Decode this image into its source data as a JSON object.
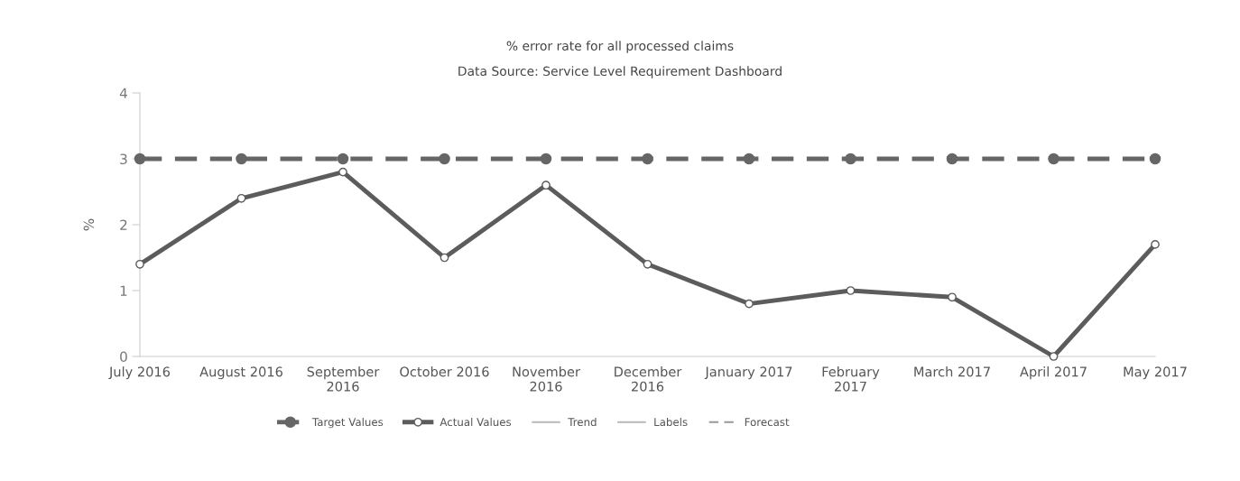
{
  "chart_data": {
    "type": "line",
    "title": "% error rate for all processed claims",
    "subtitle": "Data Source: Service Level Requirement Dashboard",
    "ylabel": "%",
    "categories": [
      "July 2016",
      "August 2016",
      "September 2016",
      "October 2016",
      "November 2016",
      "December 2016",
      "January 2017",
      "February 2017",
      "March 2017",
      "April 2017",
      "May 2017"
    ],
    "series": [
      {
        "name": "Target Values",
        "color": "#666666",
        "line_style": "dashed",
        "marker": "circle",
        "values": [
          3,
          3,
          3,
          3,
          3,
          3,
          3,
          3,
          3,
          3,
          3
        ]
      },
      {
        "name": "Actual Values",
        "color": "#5c5c5c",
        "line_style": "solid",
        "marker": "circle",
        "values": [
          1.4,
          2.4,
          2.8,
          1.5,
          2.6,
          1.4,
          0.8,
          1.0,
          0.9,
          0.0,
          1.7
        ]
      },
      {
        "name": "Trend",
        "color": "#bbbbbb",
        "line_style": "solid",
        "values": [
          null,
          null,
          null,
          null,
          null,
          null,
          null,
          null,
          null,
          null,
          null
        ]
      },
      {
        "name": "Labels",
        "color": "#bbbbbb",
        "line_style": "solid",
        "values": [
          null,
          null,
          null,
          null,
          null,
          null,
          null,
          null,
          null,
          null,
          null
        ]
      },
      {
        "name": "Forecast",
        "color": "#999999",
        "line_style": "dashed",
        "values": [
          null,
          null,
          null,
          null,
          null,
          null,
          null,
          null,
          null,
          null,
          null
        ]
      }
    ],
    "ylim": [
      0,
      4
    ],
    "yticks": [
      0,
      1,
      2,
      3,
      4
    ],
    "grid": false,
    "legend": "bottom"
  }
}
